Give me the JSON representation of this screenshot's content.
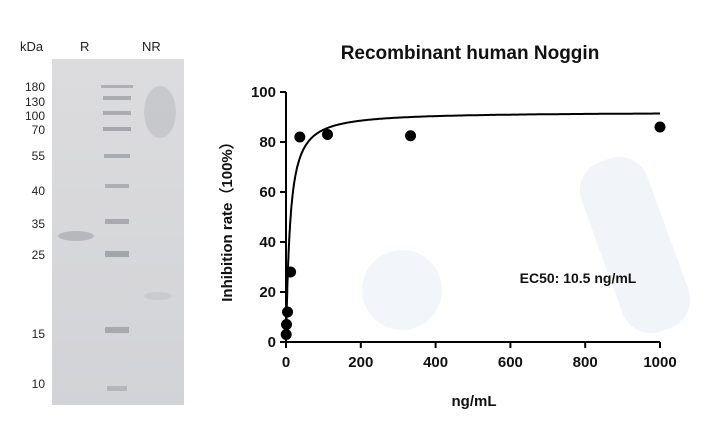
{
  "gel": {
    "unit_label": "kDa",
    "lane_labels": [
      "R",
      "NR"
    ],
    "markers": [
      "180",
      "130",
      "100",
      "70",
      "55",
      "40",
      "35",
      "25",
      "15",
      "10"
    ]
  },
  "chart_data": {
    "type": "scatter",
    "title": "Recombinant human Noggin",
    "xlabel": "ng/mL",
    "ylabel": "Inhibition rate（100%）",
    "xlim": [
      0,
      1000
    ],
    "ylim": [
      0,
      100
    ],
    "x_ticks": [
      0,
      200,
      400,
      600,
      800,
      1000
    ],
    "y_ticks": [
      0,
      20,
      40,
      60,
      80,
      100
    ],
    "annotation": "EC50: 10.5 ng/mL",
    "points": [
      {
        "x": 0.5,
        "y": 3
      },
      {
        "x": 1.4,
        "y": 7
      },
      {
        "x": 4.1,
        "y": 12
      },
      {
        "x": 12.3,
        "y": 28
      },
      {
        "x": 37,
        "y": 82
      },
      {
        "x": 111,
        "y": 83
      },
      {
        "x": 333,
        "y": 82.5
      },
      {
        "x": 1000,
        "y": 86
      }
    ],
    "fit": {
      "model": "hill",
      "top": 92,
      "ec50": 10.5,
      "hill": 1.1
    },
    "colors": {
      "points": "#000000",
      "curve": "#000000"
    }
  }
}
